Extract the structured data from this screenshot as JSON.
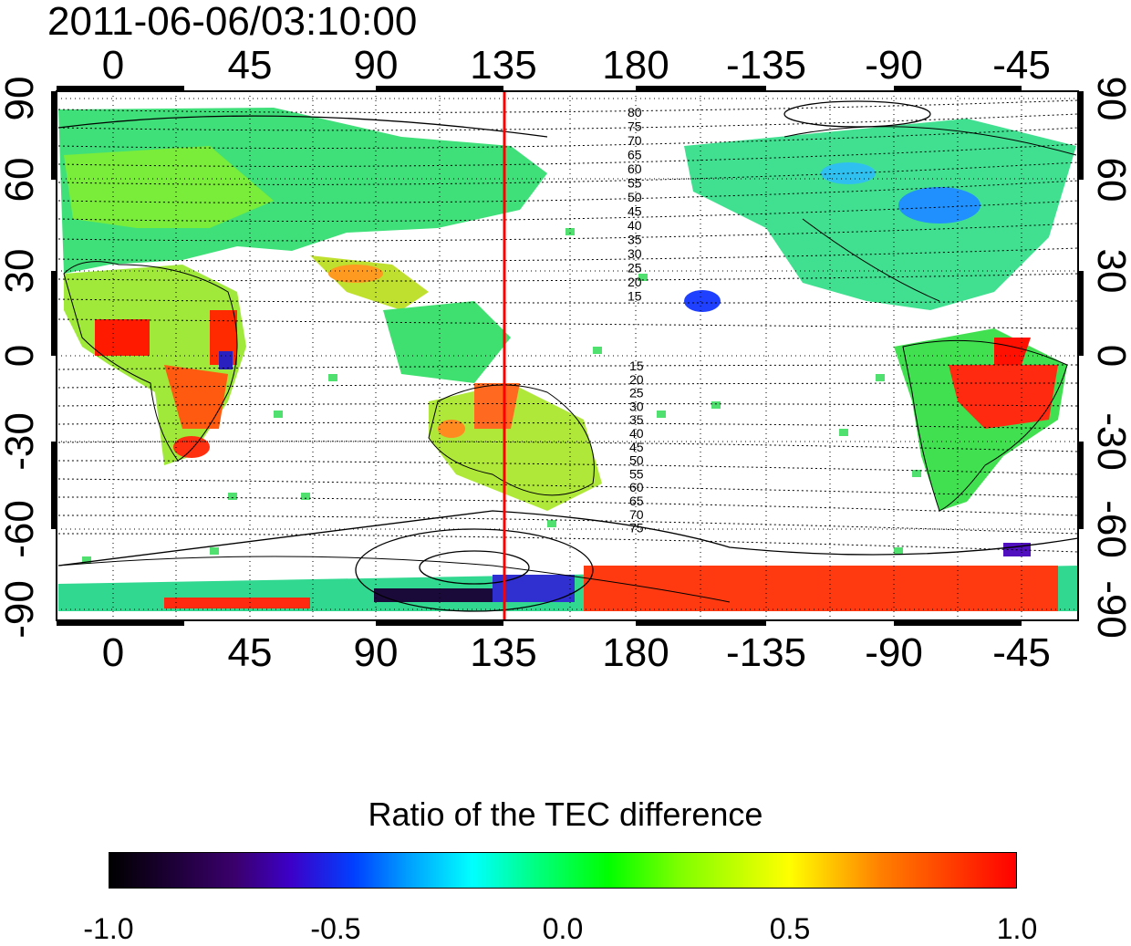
{
  "title": "2011-06-06/03:10:00",
  "map": {
    "x_ticks_top": [
      "0",
      "45",
      "90",
      "135",
      "180",
      "-135",
      "-90",
      "-45"
    ],
    "x_ticks_bottom": [
      "0",
      "45",
      "90",
      "135",
      "180",
      "-135",
      "-90",
      "-45"
    ],
    "y_ticks_left": [
      "90",
      "60",
      "30",
      "0",
      "-30",
      "-60",
      "-90"
    ],
    "y_ticks_right": [
      "90",
      "60",
      "30",
      "0",
      "-30",
      "-60",
      "-90"
    ],
    "contour_labels_north": [
      "80",
      "75",
      "70",
      "65",
      "60",
      "55",
      "50",
      "45",
      "40",
      "35",
      "30",
      "25",
      "20",
      "15"
    ],
    "contour_labels_south": [
      "15",
      "20",
      "25",
      "30",
      "35",
      "40",
      "45",
      "50",
      "55",
      "60",
      "65",
      "70",
      "75"
    ],
    "marker_line_lon": 135,
    "marker_color": "#ff0000"
  },
  "colorbar": {
    "title": "Ratio of the TEC difference",
    "ticks": [
      "-1.0",
      "-0.5",
      "0.0",
      "0.5",
      "1.0"
    ],
    "range": [
      -1.0,
      1.0
    ]
  }
}
